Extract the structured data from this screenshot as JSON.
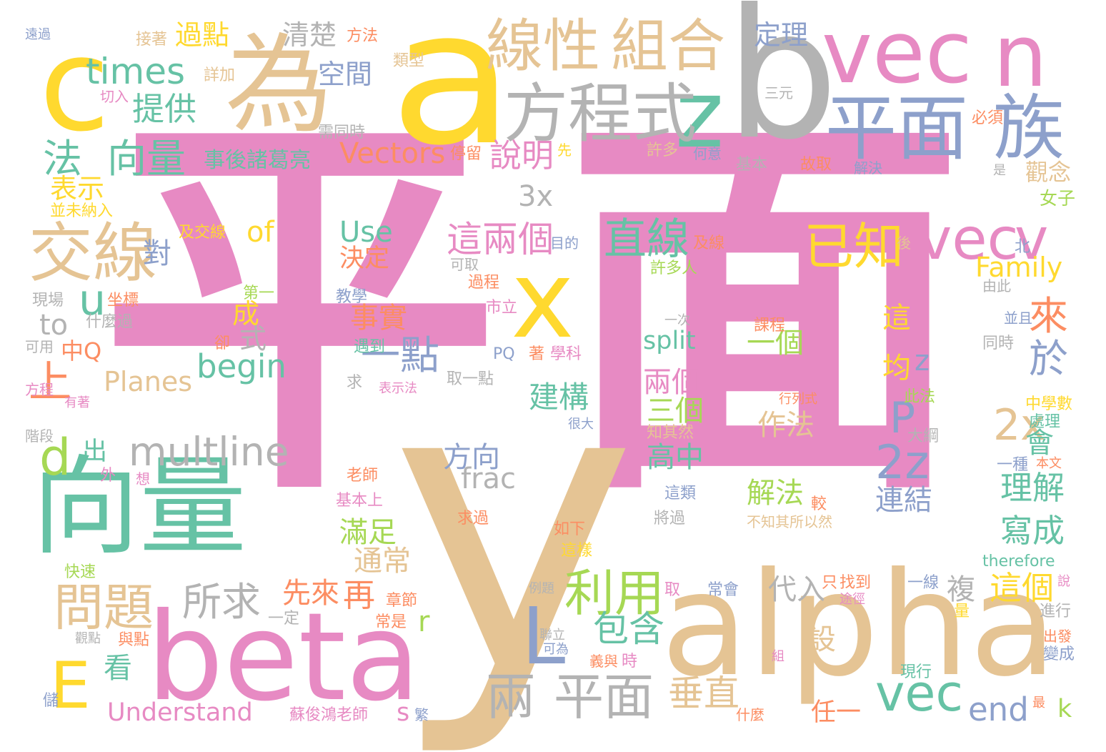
{
  "palette": {
    "pink": "#e78ac3",
    "tan": "#e5c494",
    "yellow": "#ffd92f",
    "green": "#66c2a5",
    "blue": "#8da0cb",
    "gray": "#b3b3b3",
    "orange": "#fc8d62",
    "lime": "#a6d854"
  },
  "words": [
    {
      "text": "平",
      "color": "pink"
    },
    {
      "text": "面",
      "color": "pink"
    },
    {
      "text": "y",
      "color": "tan"
    },
    {
      "text": "a",
      "color": "yellow"
    },
    {
      "text": "b",
      "color": "gray"
    },
    {
      "text": "c",
      "color": "yellow"
    },
    {
      "text": "alpha",
      "color": "tan"
    },
    {
      "text": "beta",
      "color": "pink"
    },
    {
      "text": "向量",
      "color": "green"
    },
    {
      "text": "為",
      "color": "tan"
    },
    {
      "text": "vec",
      "color": "pink"
    },
    {
      "text": "n",
      "color": "pink"
    },
    {
      "text": "平面",
      "color": "blue"
    },
    {
      "text": "族",
      "color": "blue"
    },
    {
      "text": "z",
      "color": "green"
    },
    {
      "text": "方程式",
      "color": "gray"
    },
    {
      "text": "線性",
      "color": "tan"
    },
    {
      "text": "組合",
      "color": "tan"
    },
    {
      "text": "x",
      "color": "yellow"
    },
    {
      "text": "交線",
      "color": "tan"
    },
    {
      "text": "vec",
      "color": "pink"
    },
    {
      "text": "v",
      "color": "pink"
    },
    {
      "text": "已知",
      "color": "yellow"
    },
    {
      "text": "直線",
      "color": "green"
    },
    {
      "text": "問題",
      "color": "tan"
    },
    {
      "text": "利用",
      "color": "lime"
    },
    {
      "text": "兩",
      "color": "gray"
    },
    {
      "text": "平面",
      "color": "gray"
    },
    {
      "text": "vec",
      "color": "green"
    },
    {
      "text": "L",
      "color": "blue"
    },
    {
      "text": "E",
      "color": "yellow"
    },
    {
      "text": "法",
      "color": "green"
    },
    {
      "text": "向量",
      "color": "green"
    },
    {
      "text": "multline",
      "color": "gray"
    },
    {
      "text": "所求",
      "color": "gray"
    },
    {
      "text": "begin",
      "color": "green"
    },
    {
      "text": "一點",
      "color": "blue"
    },
    {
      "text": "這兩個",
      "color": "pink"
    },
    {
      "text": "2z",
      "color": "blue"
    },
    {
      "text": "2x",
      "color": "tan"
    },
    {
      "text": "P",
      "color": "blue"
    },
    {
      "text": "來",
      "color": "orange"
    },
    {
      "text": "於",
      "color": "blue"
    },
    {
      "text": "u",
      "color": "green"
    },
    {
      "text": "d",
      "color": "lime"
    },
    {
      "text": "上",
      "color": "orange"
    },
    {
      "text": "times",
      "color": "green"
    },
    {
      "text": "提供",
      "color": "green"
    },
    {
      "text": "空間",
      "color": "blue"
    },
    {
      "text": "清楚",
      "color": "gray"
    },
    {
      "text": "過點",
      "color": "yellow"
    },
    {
      "text": "定理",
      "color": "blue"
    },
    {
      "text": "Vectors",
      "color": "orange"
    },
    {
      "text": "說明",
      "color": "pink"
    },
    {
      "text": "事後諸葛亮",
      "color": "green"
    },
    {
      "text": "表示",
      "color": "yellow"
    },
    {
      "text": "3x",
      "color": "gray"
    },
    {
      "text": "Use",
      "color": "green"
    },
    {
      "text": "決定",
      "color": "orange"
    },
    {
      "text": "of",
      "color": "yellow"
    },
    {
      "text": "對",
      "color": "blue"
    },
    {
      "text": "Family",
      "color": "yellow"
    },
    {
      "text": "觀念",
      "color": "tan"
    },
    {
      "text": "女子",
      "color": "lime"
    },
    {
      "text": "事實",
      "color": "orange"
    },
    {
      "text": "成",
      "color": "yellow"
    },
    {
      "text": "式",
      "color": "gray"
    },
    {
      "text": "Planes",
      "color": "tan"
    },
    {
      "text": "建構",
      "color": "green"
    },
    {
      "text": "方向",
      "color": "blue"
    },
    {
      "text": "frac",
      "color": "gray"
    },
    {
      "text": "split",
      "color": "green"
    },
    {
      "text": "一個",
      "color": "lime"
    },
    {
      "text": "這",
      "color": "yellow"
    },
    {
      "text": "兩個",
      "color": "pink"
    },
    {
      "text": "三個",
      "color": "lime"
    },
    {
      "text": "作法",
      "color": "tan"
    },
    {
      "text": "高中",
      "color": "green"
    },
    {
      "text": "解法",
      "color": "lime"
    },
    {
      "text": "連結",
      "color": "blue"
    },
    {
      "text": "理解",
      "color": "green"
    },
    {
      "text": "寫成",
      "color": "green"
    },
    {
      "text": "會",
      "color": "green"
    },
    {
      "text": "均",
      "color": "yellow"
    },
    {
      "text": "z",
      "color": "blue"
    },
    {
      "text": "滿足",
      "color": "lime"
    },
    {
      "text": "通常",
      "color": "tan"
    },
    {
      "text": "先來",
      "color": "orange"
    },
    {
      "text": "再",
      "color": "orange"
    },
    {
      "text": "r",
      "color": "lime"
    },
    {
      "text": "包含",
      "color": "green"
    },
    {
      "text": "代入",
      "color": "gray"
    },
    {
      "text": "複",
      "color": "gray"
    },
    {
      "text": "設",
      "color": "tan"
    },
    {
      "text": "這個",
      "color": "yellow"
    },
    {
      "text": "垂直",
      "color": "tan"
    },
    {
      "text": "任一",
      "color": "orange"
    },
    {
      "text": "end",
      "color": "blue"
    },
    {
      "text": "k",
      "color": "lime"
    },
    {
      "text": "Understand",
      "color": "pink"
    },
    {
      "text": "看",
      "color": "green"
    },
    {
      "text": "s",
      "color": "pink"
    },
    {
      "text": "出",
      "color": "green"
    },
    {
      "text": "to",
      "color": "gray"
    },
    {
      "text": "中Q",
      "color": "orange"
    },
    {
      "text": "therefore",
      "color": "green"
    },
    {
      "text": "遠過",
      "color": "blue"
    },
    {
      "text": "接著",
      "color": "tan"
    },
    {
      "text": "方法",
      "color": "orange"
    },
    {
      "text": "類型",
      "color": "tan"
    },
    {
      "text": "詳加",
      "color": "tan"
    },
    {
      "text": "切入",
      "color": "pink"
    },
    {
      "text": "需同時",
      "color": "gray"
    },
    {
      "text": "停留",
      "color": "orange"
    },
    {
      "text": "先",
      "color": "yellow"
    },
    {
      "text": "許多",
      "color": "tan"
    },
    {
      "text": "何意",
      "color": "blue"
    },
    {
      "text": "基本",
      "color": "gray"
    },
    {
      "text": "故取",
      "color": "orange"
    },
    {
      "text": "解決",
      "color": "blue"
    },
    {
      "text": "三元",
      "color": "gray"
    },
    {
      "text": "必須",
      "color": "orange"
    },
    {
      "text": "並未納入",
      "color": "yellow"
    },
    {
      "text": "及交線",
      "color": "yellow"
    },
    {
      "text": "目的",
      "color": "blue"
    },
    {
      "text": "及線",
      "color": "orange"
    },
    {
      "text": "可取",
      "color": "gray"
    },
    {
      "text": "過程",
      "color": "orange"
    },
    {
      "text": "許多人",
      "color": "lime"
    },
    {
      "text": "後",
      "color": "tan"
    },
    {
      "text": "北",
      "color": "blue"
    },
    {
      "text": "現場",
      "color": "gray"
    },
    {
      "text": "坐標",
      "color": "orange"
    },
    {
      "text": "第一",
      "color": "lime"
    },
    {
      "text": "什麼過",
      "color": "gray"
    },
    {
      "text": "教學",
      "color": "blue"
    },
    {
      "text": "市立",
      "color": "pink"
    },
    {
      "text": "由此",
      "color": "gray"
    },
    {
      "text": "一次",
      "color": "gray"
    },
    {
      "text": "課程",
      "color": "orange"
    },
    {
      "text": "並且",
      "color": "blue"
    },
    {
      "text": "同時",
      "color": "gray"
    },
    {
      "text": "可用",
      "color": "gray"
    },
    {
      "text": "卻",
      "color": "orange"
    },
    {
      "text": "遇到",
      "color": "green"
    },
    {
      "text": "PQ",
      "color": "blue"
    },
    {
      "text": "著",
      "color": "orange"
    },
    {
      "text": "學科",
      "color": "pink"
    },
    {
      "text": "方程",
      "color": "pink"
    },
    {
      "text": "求",
      "color": "gray"
    },
    {
      "text": "表示法",
      "color": "pink"
    },
    {
      "text": "取一點",
      "color": "gray"
    },
    {
      "text": "此法",
      "color": "lime"
    },
    {
      "text": "中學數",
      "color": "yellow"
    },
    {
      "text": "行列式",
      "color": "orange"
    },
    {
      "text": "處理",
      "color": "green"
    },
    {
      "text": "有著",
      "color": "pink"
    },
    {
      "text": "大綱",
      "color": "gray"
    },
    {
      "text": "階段",
      "color": "gray"
    },
    {
      "text": "很大",
      "color": "blue"
    },
    {
      "text": "知其然",
      "color": "tan"
    },
    {
      "text": "一種",
      "color": "blue"
    },
    {
      "text": "本文",
      "color": "orange"
    },
    {
      "text": "外",
      "color": "pink"
    },
    {
      "text": "想",
      "color": "pink"
    },
    {
      "text": "老師",
      "color": "orange"
    },
    {
      "text": "基本上",
      "color": "pink"
    },
    {
      "text": "這類",
      "color": "blue"
    },
    {
      "text": "較",
      "color": "orange"
    },
    {
      "text": "將過",
      "color": "gray"
    },
    {
      "text": "不知其所以然",
      "color": "tan"
    },
    {
      "text": "求過",
      "color": "orange"
    },
    {
      "text": "如下",
      "color": "orange"
    },
    {
      "text": "這樣",
      "color": "yellow"
    },
    {
      "text": "快速",
      "color": "lime"
    },
    {
      "text": "例題",
      "color": "gray"
    },
    {
      "text": "取",
      "color": "pink"
    },
    {
      "text": "常會",
      "color": "blue"
    },
    {
      "text": "一線",
      "color": "blue"
    },
    {
      "text": "只",
      "color": "orange"
    },
    {
      "text": "找到",
      "color": "orange"
    },
    {
      "text": "途徑",
      "color": "pink"
    },
    {
      "text": "說",
      "color": "pink"
    },
    {
      "text": "章節",
      "color": "orange"
    },
    {
      "text": "常是",
      "color": "orange"
    },
    {
      "text": "一定",
      "color": "gray"
    },
    {
      "text": "觀點",
      "color": "gray"
    },
    {
      "text": "與點",
      "color": "orange"
    },
    {
      "text": "聯立",
      "color": "gray"
    },
    {
      "text": "可為",
      "color": "blue"
    },
    {
      "text": "義與",
      "color": "orange"
    },
    {
      "text": "時",
      "color": "pink"
    },
    {
      "text": "組",
      "color": "pink"
    },
    {
      "text": "量",
      "color": "yellow"
    },
    {
      "text": "進行",
      "color": "gray"
    },
    {
      "text": "出發",
      "color": "orange"
    },
    {
      "text": "變成",
      "color": "blue"
    },
    {
      "text": "儲",
      "color": "blue"
    },
    {
      "text": "蘇俊鴻老師",
      "color": "pink"
    },
    {
      "text": "繁",
      "color": "blue"
    },
    {
      "text": "什麼",
      "color": "orange"
    },
    {
      "text": "現行",
      "color": "green"
    },
    {
      "text": "最",
      "color": "orange"
    },
    {
      "text": "是",
      "color": "gray"
    }
  ]
}
